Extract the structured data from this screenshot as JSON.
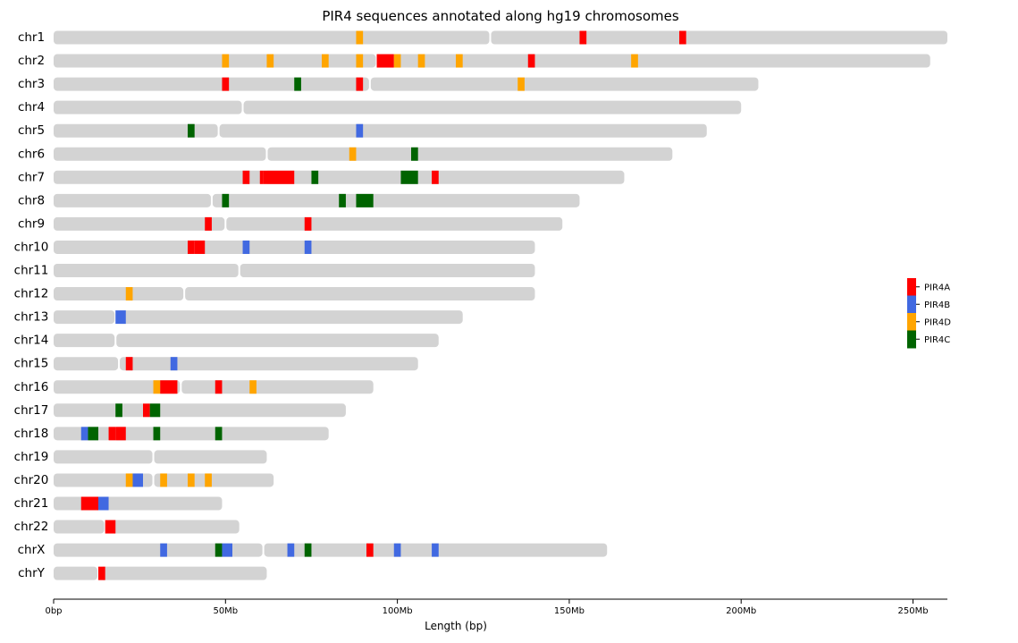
{
  "chart_data": {
    "type": "chromosome-ideogram",
    "title": "PIR4 sequences annotated along hg19 chromosomes",
    "xlabel": "Length (bp)",
    "xlim": [
      0,
      260
    ],
    "x_unit": "Mb",
    "xticks": [
      {
        "value": 0,
        "label": "0bp"
      },
      {
        "value": 50,
        "label": "50Mb"
      },
      {
        "value": 100,
        "label": "100Mb"
      },
      {
        "value": 150,
        "label": "150Mb"
      },
      {
        "value": 200,
        "label": "200Mb"
      },
      {
        "value": 250,
        "label": "250Mb"
      }
    ],
    "legend": {
      "placement": "right",
      "items": [
        {
          "name": "PIR4A",
          "color": "#ff0000"
        },
        {
          "name": "PIR4B",
          "color": "#4169e1"
        },
        {
          "name": "PIR4D",
          "color": "#ffa500"
        },
        {
          "name": "PIR4C",
          "color": "#006400"
        }
      ]
    },
    "chromosome_color": "#d3d3d3",
    "chromosomes": [
      {
        "name": "chr1",
        "length": 260,
        "centromere": 127,
        "features": [
          {
            "type": "PIR4D",
            "start": 88,
            "end": 90
          },
          {
            "type": "PIR4A",
            "start": 153,
            "end": 155
          },
          {
            "type": "PIR4A",
            "start": 182,
            "end": 184
          }
        ]
      },
      {
        "name": "chr2",
        "length": 255,
        "centromere": 94,
        "features": [
          {
            "type": "PIR4D",
            "start": 49,
            "end": 51
          },
          {
            "type": "PIR4D",
            "start": 62,
            "end": 64
          },
          {
            "type": "PIR4D",
            "start": 78,
            "end": 80
          },
          {
            "type": "PIR4D",
            "start": 88,
            "end": 90
          },
          {
            "type": "PIR4A",
            "start": 94,
            "end": 99
          },
          {
            "type": "PIR4D",
            "start": 99,
            "end": 101
          },
          {
            "type": "PIR4D",
            "start": 106,
            "end": 108
          },
          {
            "type": "PIR4D",
            "start": 117,
            "end": 119
          },
          {
            "type": "PIR4A",
            "start": 138,
            "end": 140
          },
          {
            "type": "PIR4D",
            "start": 168,
            "end": 170
          }
        ]
      },
      {
        "name": "chr3",
        "length": 205,
        "centromere": 92,
        "features": [
          {
            "type": "PIR4A",
            "start": 49,
            "end": 51
          },
          {
            "type": "PIR4C",
            "start": 70,
            "end": 72
          },
          {
            "type": "PIR4A",
            "start": 88,
            "end": 90
          },
          {
            "type": "PIR4D",
            "start": 135,
            "end": 137
          }
        ]
      },
      {
        "name": "chr4",
        "length": 200,
        "centromere": 55,
        "features": []
      },
      {
        "name": "chr5",
        "length": 190,
        "centromere": 48,
        "features": [
          {
            "type": "PIR4C",
            "start": 39,
            "end": 41
          },
          {
            "type": "PIR4B",
            "start": 88,
            "end": 90
          }
        ]
      },
      {
        "name": "chr6",
        "length": 180,
        "centromere": 62,
        "features": [
          {
            "type": "PIR4D",
            "start": 86,
            "end": 88
          },
          {
            "type": "PIR4C",
            "start": 104,
            "end": 106
          }
        ]
      },
      {
        "name": "chr7",
        "length": 166,
        "centromere": 61,
        "features": [
          {
            "type": "PIR4A",
            "start": 55,
            "end": 57
          },
          {
            "type": "PIR4A",
            "start": 60,
            "end": 61
          },
          {
            "type": "PIR4A",
            "start": 61,
            "end": 70
          },
          {
            "type": "PIR4C",
            "start": 75,
            "end": 77
          },
          {
            "type": "PIR4C",
            "start": 101,
            "end": 106
          },
          {
            "type": "PIR4A",
            "start": 110,
            "end": 112
          }
        ]
      },
      {
        "name": "chr8",
        "length": 153,
        "centromere": 46,
        "features": [
          {
            "type": "PIR4C",
            "start": 49,
            "end": 51
          },
          {
            "type": "PIR4C",
            "start": 83,
            "end": 85
          },
          {
            "type": "PIR4C",
            "start": 88,
            "end": 93
          }
        ]
      },
      {
        "name": "chr9",
        "length": 148,
        "centromere": 50,
        "features": [
          {
            "type": "PIR4A",
            "start": 44,
            "end": 46
          },
          {
            "type": "PIR4A",
            "start": 73,
            "end": 75
          }
        ]
      },
      {
        "name": "chr10",
        "length": 140,
        "centromere": 41,
        "features": [
          {
            "type": "PIR4A",
            "start": 39,
            "end": 41
          },
          {
            "type": "PIR4A",
            "start": 41,
            "end": 44
          },
          {
            "type": "PIR4B",
            "start": 55,
            "end": 57
          },
          {
            "type": "PIR4B",
            "start": 73,
            "end": 75
          }
        ]
      },
      {
        "name": "chr11",
        "length": 140,
        "centromere": 54,
        "features": []
      },
      {
        "name": "chr12",
        "length": 140,
        "centromere": 38,
        "features": [
          {
            "type": "PIR4D",
            "start": 21,
            "end": 23
          }
        ]
      },
      {
        "name": "chr13",
        "length": 119,
        "centromere": 18,
        "features": [
          {
            "type": "PIR4B",
            "start": 18,
            "end": 21
          }
        ]
      },
      {
        "name": "chr14",
        "length": 112,
        "centromere": 18,
        "features": []
      },
      {
        "name": "chr15",
        "length": 106,
        "centromere": 19,
        "features": [
          {
            "type": "PIR4A",
            "start": 21,
            "end": 23
          },
          {
            "type": "PIR4B",
            "start": 34,
            "end": 36
          }
        ]
      },
      {
        "name": "chr16",
        "length": 93,
        "centromere": 37,
        "features": [
          {
            "type": "PIR4D",
            "start": 29,
            "end": 31
          },
          {
            "type": "PIR4A",
            "start": 31,
            "end": 36
          },
          {
            "type": "PIR4A",
            "start": 47,
            "end": 49
          },
          {
            "type": "PIR4D",
            "start": 57,
            "end": 59
          }
        ]
      },
      {
        "name": "chr17",
        "length": 85,
        "centromere": 27,
        "features": [
          {
            "type": "PIR4C",
            "start": 18,
            "end": 20
          },
          {
            "type": "PIR4A",
            "start": 26,
            "end": 28
          },
          {
            "type": "PIR4C",
            "start": 28,
            "end": 31
          }
        ]
      },
      {
        "name": "chr18",
        "length": 80,
        "centromere": 17,
        "features": [
          {
            "type": "PIR4B",
            "start": 8,
            "end": 10
          },
          {
            "type": "PIR4C",
            "start": 10,
            "end": 13
          },
          {
            "type": "PIR4A",
            "start": 16,
            "end": 18
          },
          {
            "type": "PIR4A",
            "start": 18,
            "end": 21
          },
          {
            "type": "PIR4C",
            "start": 29,
            "end": 31
          },
          {
            "type": "PIR4C",
            "start": 47,
            "end": 49
          }
        ]
      },
      {
        "name": "chr19",
        "length": 62,
        "centromere": 29,
        "features": []
      },
      {
        "name": "chr20",
        "length": 64,
        "centromere": 29,
        "features": [
          {
            "type": "PIR4D",
            "start": 21,
            "end": 23
          },
          {
            "type": "PIR4B",
            "start": 23,
            "end": 26
          },
          {
            "type": "PIR4D",
            "start": 31,
            "end": 33
          },
          {
            "type": "PIR4D",
            "start": 39,
            "end": 41
          },
          {
            "type": "PIR4D",
            "start": 44,
            "end": 46
          }
        ]
      },
      {
        "name": "chr21",
        "length": 49,
        "centromere": 13,
        "features": [
          {
            "type": "PIR4A",
            "start": 8,
            "end": 13
          },
          {
            "type": "PIR4B",
            "start": 13,
            "end": 16
          }
        ]
      },
      {
        "name": "chr22",
        "length": 54,
        "centromere": 15,
        "features": [
          {
            "type": "PIR4A",
            "start": 15,
            "end": 18
          }
        ]
      },
      {
        "name": "chrX",
        "length": 161,
        "centromere": 61,
        "features": [
          {
            "type": "PIR4B",
            "start": 31,
            "end": 33
          },
          {
            "type": "PIR4C",
            "start": 47,
            "end": 49
          },
          {
            "type": "PIR4B",
            "start": 49,
            "end": 52
          },
          {
            "type": "PIR4B",
            "start": 68,
            "end": 70
          },
          {
            "type": "PIR4C",
            "start": 73,
            "end": 75
          },
          {
            "type": "PIR4A",
            "start": 91,
            "end": 93
          },
          {
            "type": "PIR4B",
            "start": 99,
            "end": 101
          },
          {
            "type": "PIR4B",
            "start": 110,
            "end": 112
          }
        ]
      },
      {
        "name": "chrY",
        "length": 62,
        "centromere": 13,
        "features": [
          {
            "type": "PIR4A",
            "start": 13,
            "end": 15
          }
        ]
      }
    ]
  }
}
